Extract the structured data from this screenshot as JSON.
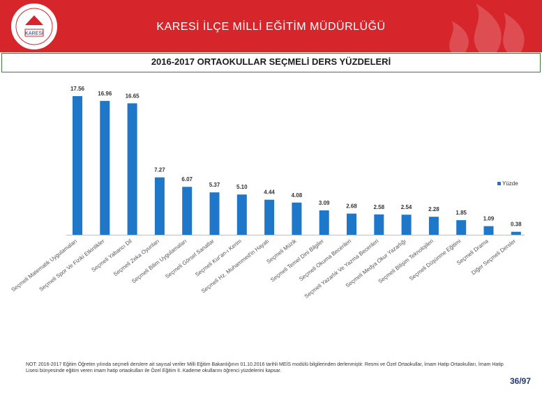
{
  "header": {
    "title": "KARESİ İLÇE MİLLİ EĞİTİM MÜDÜRLÜĞÜ",
    "logo_text": "KARESİ",
    "colors": {
      "background": "#d6262b",
      "text": "#ffffff"
    }
  },
  "chart_data": {
    "type": "bar",
    "title": "2016-2017 ORTAOKULLAR SEÇMELİ DERS YÜZDELERİ",
    "legend": {
      "label": "Yüzde",
      "placement": "right"
    },
    "bar_color": "#1f77c9",
    "ylim": [
      0,
      18
    ],
    "grid": false,
    "categories": [
      "Seçmeli Matematik Uygulamaları",
      "Seçmeli Spor Ve Fiziki Etkinlikler",
      "Seçmeli Yabancı Dil",
      "Seçmeli Zeka Oyunları",
      "Seçmeli Bilim Uygulamaları",
      "Seçmeli Görsel Sanatlar",
      "Seçmeli Kur'an-ı Kerim",
      "Seçmeli Hz. Muhammed'in Hayatı",
      "Seçmeli Müzik",
      "Seçmeli Temel Dini Bilgiler",
      "Seçmeli Okuma Becerileri",
      "Seçmeli Yazarlık Ve Yazma Becerileri",
      "Seçmeli Medya Okur Yazarlığı",
      "Seçmeli Bilişim Teknolojileri",
      "Seçmeli Düşünme Eğitimi",
      "Seçmeli Drama",
      "Diğer Seçmeli Dersler"
    ],
    "values": [
      17.56,
      16.96,
      16.65,
      7.27,
      6.07,
      5.37,
      5.1,
      4.44,
      4.08,
      3.09,
      2.68,
      2.58,
      2.54,
      2.28,
      1.85,
      1.09,
      0.38
    ],
    "value_labels": [
      "17.56",
      "16.96",
      "16.65",
      "7.27",
      "6.07",
      "5.37",
      "5.10",
      "4.44",
      "4.08",
      "3.09",
      "2.68",
      "2.58",
      "2.54",
      "2.28",
      "1.85",
      "1.09",
      "0.38"
    ]
  },
  "note": "NOT: 2016-2017 Eğitim Öğretim yılında seçmeli derslere ait sayısal veriler Milli Eğitim Bakanlığının 01.10.2016 tarihli MEİS modülü bilgilerinden derlenmiştir. Resmi ve Özel Ortaokullar, İmam Hatip Ortaokulları, İmam Hatip Lisesi bünyesinde eğitim veren imam hatip ortaokulları ile Özel Eğitim II. Kademe okullarını öğrenci yüzdelerini kapsar.",
  "page_number": "36/97"
}
